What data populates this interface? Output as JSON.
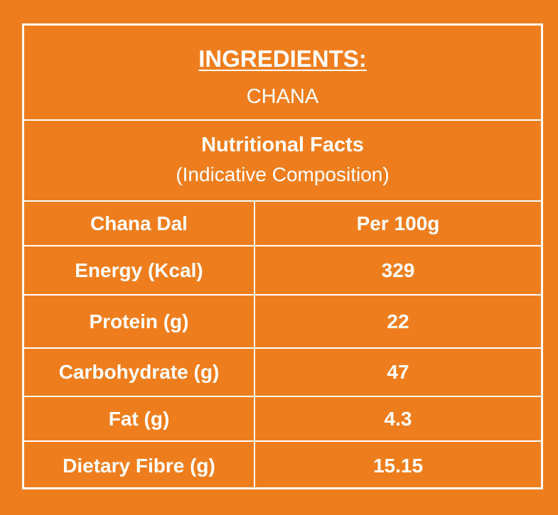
{
  "ingredients": {
    "title": "INGREDIENTS:",
    "value": "CHANA"
  },
  "nutrition": {
    "title": "Nutritional Facts",
    "subtitle": "(Indicative Composition)",
    "header": {
      "name": "Chana Dal",
      "value": "Per 100g"
    },
    "rows": [
      {
        "name": "Energy (Kcal)",
        "value": "329"
      },
      {
        "name": "Protein (g)",
        "value": "22"
      },
      {
        "name": "Carbohydrate (g)",
        "value": "47"
      },
      {
        "name": "Fat (g)",
        "value": "4.3"
      },
      {
        "name": "Dietary Fibre (g)",
        "value": "15.15"
      }
    ]
  },
  "colors": {
    "background": "#ee7e1d",
    "text": "#ffffff",
    "border": "#ffffff"
  }
}
